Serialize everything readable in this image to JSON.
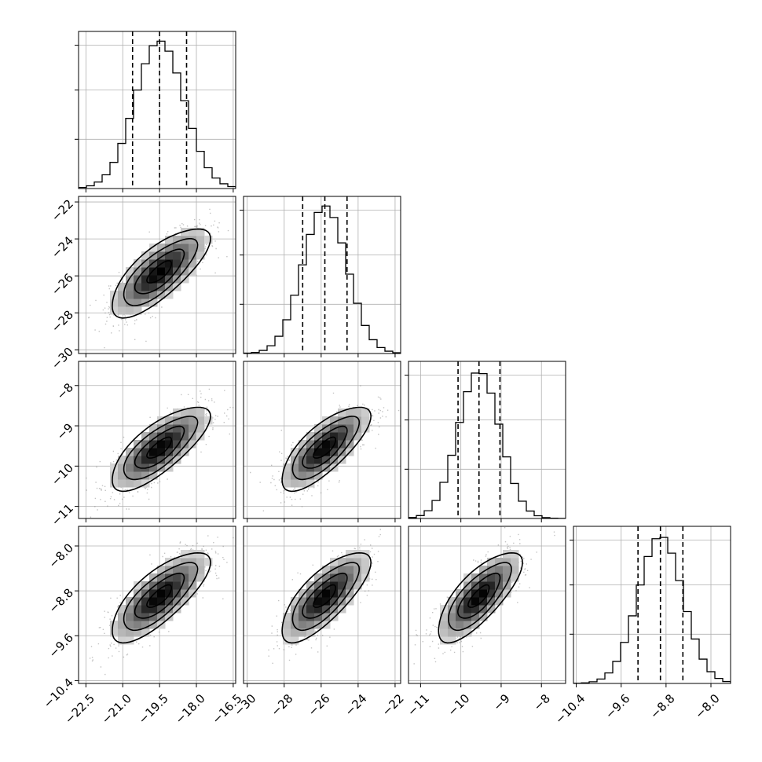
{
  "chart_data": {
    "type": "corner",
    "parameters": [
      {
        "mean": -19.5,
        "sd": 1.0,
        "range": [
          -22.8,
          -16.4
        ],
        "ticks": [
          -22.5,
          -21.0,
          -19.5,
          -18.0,
          -16.5
        ],
        "tick_labels": [
          "−22.5",
          "−21.0",
          "−19.5",
          "−18.0",
          "−16.5"
        ],
        "quantiles": [
          -20.6,
          -19.5,
          -18.4
        ]
      },
      {
        "mean": -25.8,
        "sd": 1.2,
        "range": [
          -30.2,
          -21.7
        ],
        "ticks": [
          -30,
          -28,
          -26,
          -24,
          -22
        ],
        "tick_labels": [
          "−30",
          "−28",
          "−26",
          "−24",
          "−22"
        ],
        "quantiles": [
          -27.0,
          -25.8,
          -24.6
        ]
      },
      {
        "mean": -9.55,
        "sd": 0.52,
        "range": [
          -11.3,
          -7.4
        ],
        "ticks": [
          -11,
          -10,
          -9,
          -8
        ],
        "tick_labels": [
          "−11",
          "−10",
          "−9",
          "−8"
        ],
        "quantiles": [
          -10.07,
          -9.55,
          -9.03
        ]
      },
      {
        "mean": -8.9,
        "sd": 0.4,
        "range": [
          -10.45,
          -7.65
        ],
        "ticks": [
          -10.4,
          -9.6,
          -8.8,
          -8.0
        ],
        "tick_labels": [
          "−10.4",
          "−9.6",
          "−8.8",
          "−8.0"
        ],
        "quantiles": [
          -9.3,
          -8.9,
          -8.5
        ]
      }
    ],
    "correlation": 0.75,
    "contour_levels_sigma": [
      0.5,
      1.0,
      1.5,
      2.0
    ],
    "diagonal": "histogram",
    "grid": true,
    "colors": {
      "line": "#000000",
      "points": "#808080",
      "grid": "#b0b0b0"
    }
  }
}
